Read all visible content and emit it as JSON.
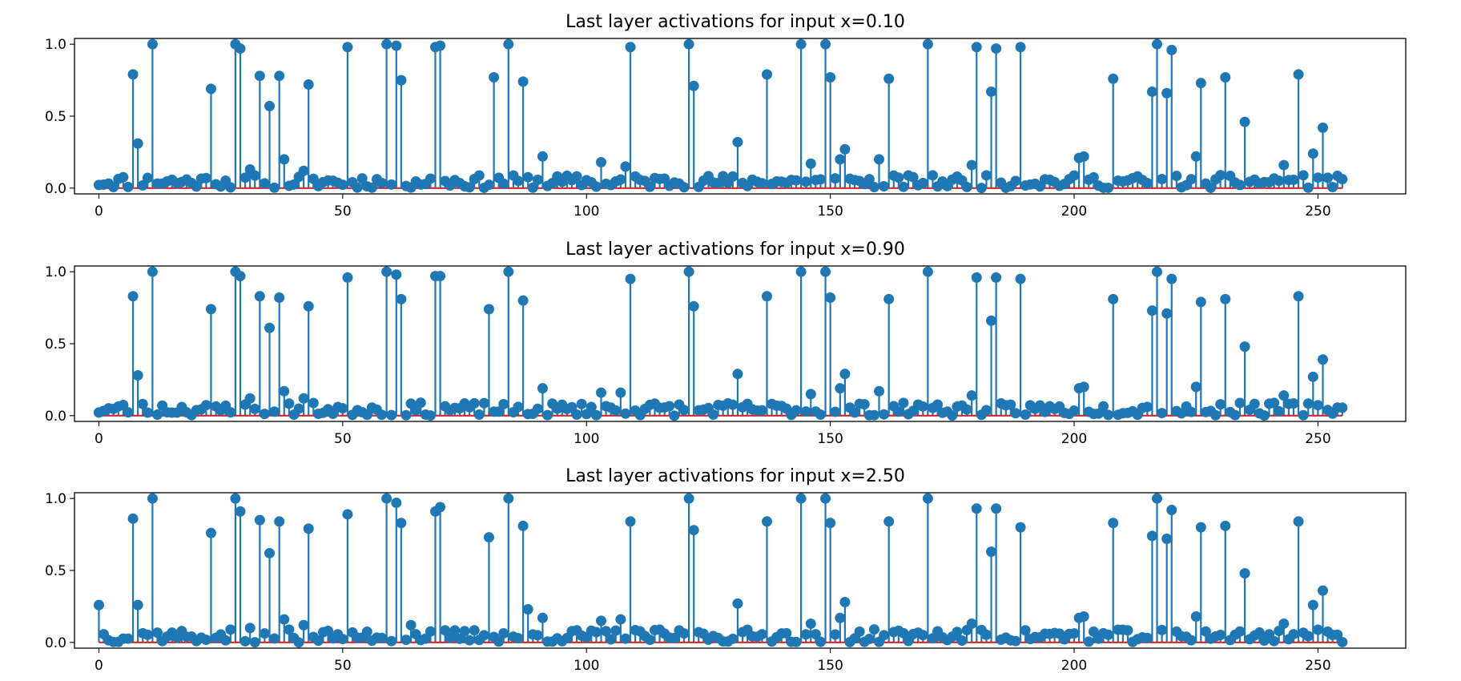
{
  "colors": {
    "stem": "#1f77b4",
    "baseline": "#d62728"
  },
  "chart_data": [
    {
      "type": "stem",
      "title": "Last layer activations for input x=0.10",
      "xlabel": "",
      "ylabel": "",
      "xlim": [
        -5,
        268
      ],
      "ylim": [
        -0.04,
        1.04
      ],
      "xticks": [
        0,
        50,
        100,
        150,
        200,
        250
      ],
      "yticks": [
        0.0,
        0.5,
        1.0
      ],
      "xtick_labels": [
        "0",
        "50",
        "100",
        "150",
        "200",
        "250"
      ],
      "ytick_labels": [
        "0.0",
        "0.5",
        "1.0"
      ],
      "grid": false,
      "legend": "none",
      "baseline_value": 0,
      "peaks": [
        [
          7,
          0.79
        ],
        [
          8,
          0.31
        ],
        [
          11,
          1.0
        ],
        [
          23,
          0.69
        ],
        [
          28,
          1.0
        ],
        [
          29,
          0.97
        ],
        [
          31,
          0.13
        ],
        [
          33,
          0.78
        ],
        [
          35,
          0.57
        ],
        [
          37,
          0.78
        ],
        [
          38,
          0.2
        ],
        [
          42,
          0.12
        ],
        [
          43,
          0.72
        ],
        [
          51,
          0.98
        ],
        [
          59,
          1.0
        ],
        [
          61,
          0.99
        ],
        [
          62,
          0.75
        ],
        [
          69,
          0.98
        ],
        [
          70,
          0.99
        ],
        [
          81,
          0.77
        ],
        [
          84,
          1.0
        ],
        [
          87,
          0.74
        ],
        [
          91,
          0.22
        ],
        [
          103,
          0.18
        ],
        [
          108,
          0.15
        ],
        [
          109,
          0.98
        ],
        [
          121,
          1.0
        ],
        [
          122,
          0.71
        ],
        [
          131,
          0.32
        ],
        [
          137,
          0.79
        ],
        [
          144,
          1.0
        ],
        [
          146,
          0.17
        ],
        [
          149,
          1.0
        ],
        [
          150,
          0.77
        ],
        [
          152,
          0.2
        ],
        [
          153,
          0.27
        ],
        [
          160,
          0.2
        ],
        [
          162,
          0.76
        ],
        [
          170,
          1.0
        ],
        [
          179,
          0.16
        ],
        [
          180,
          0.98
        ],
        [
          183,
          0.67
        ],
        [
          184,
          0.97
        ],
        [
          189,
          0.98
        ],
        [
          201,
          0.21
        ],
        [
          202,
          0.22
        ],
        [
          208,
          0.76
        ],
        [
          216,
          0.67
        ],
        [
          217,
          1.0
        ],
        [
          219,
          0.66
        ],
        [
          220,
          0.96
        ],
        [
          225,
          0.22
        ],
        [
          226,
          0.73
        ],
        [
          231,
          0.77
        ],
        [
          235,
          0.46
        ],
        [
          243,
          0.16
        ],
        [
          246,
          0.79
        ],
        [
          249,
          0.24
        ],
        [
          251,
          0.42
        ]
      ],
      "noise_seed": 11,
      "noise_max": 0.09
    },
    {
      "type": "stem",
      "title": "Last layer activations for input x=0.90",
      "xlabel": "",
      "ylabel": "",
      "xlim": [
        -5,
        268
      ],
      "ylim": [
        -0.04,
        1.04
      ],
      "xticks": [
        0,
        50,
        100,
        150,
        200,
        250
      ],
      "yticks": [
        0.0,
        0.5,
        1.0
      ],
      "xtick_labels": [
        "0",
        "50",
        "100",
        "150",
        "200",
        "250"
      ],
      "ytick_labels": [
        "0.0",
        "0.5",
        "1.0"
      ],
      "grid": false,
      "legend": "none",
      "baseline_value": 0,
      "peaks": [
        [
          7,
          0.83
        ],
        [
          8,
          0.28
        ],
        [
          11,
          1.0
        ],
        [
          23,
          0.74
        ],
        [
          28,
          1.0
        ],
        [
          29,
          0.97
        ],
        [
          31,
          0.12
        ],
        [
          33,
          0.83
        ],
        [
          35,
          0.61
        ],
        [
          37,
          0.82
        ],
        [
          38,
          0.17
        ],
        [
          42,
          0.12
        ],
        [
          43,
          0.76
        ],
        [
          51,
          0.96
        ],
        [
          59,
          1.0
        ],
        [
          61,
          0.98
        ],
        [
          62,
          0.81
        ],
        [
          69,
          0.97
        ],
        [
          70,
          0.97
        ],
        [
          80,
          0.74
        ],
        [
          84,
          1.0
        ],
        [
          87,
          0.8
        ],
        [
          91,
          0.19
        ],
        [
          103,
          0.16
        ],
        [
          107,
          0.16
        ],
        [
          109,
          0.95
        ],
        [
          121,
          1.0
        ],
        [
          122,
          0.76
        ],
        [
          131,
          0.29
        ],
        [
          137,
          0.83
        ],
        [
          144,
          1.0
        ],
        [
          146,
          0.15
        ],
        [
          149,
          1.0
        ],
        [
          150,
          0.82
        ],
        [
          152,
          0.19
        ],
        [
          153,
          0.29
        ],
        [
          160,
          0.17
        ],
        [
          162,
          0.81
        ],
        [
          170,
          1.0
        ],
        [
          179,
          0.14
        ],
        [
          180,
          0.96
        ],
        [
          183,
          0.66
        ],
        [
          184,
          0.96
        ],
        [
          189,
          0.95
        ],
        [
          201,
          0.19
        ],
        [
          202,
          0.2
        ],
        [
          208,
          0.81
        ],
        [
          216,
          0.73
        ],
        [
          217,
          1.0
        ],
        [
          219,
          0.71
        ],
        [
          220,
          0.95
        ],
        [
          225,
          0.2
        ],
        [
          226,
          0.79
        ],
        [
          231,
          0.81
        ],
        [
          235,
          0.48
        ],
        [
          243,
          0.14
        ],
        [
          246,
          0.83
        ],
        [
          249,
          0.27
        ],
        [
          251,
          0.39
        ]
      ],
      "noise_seed": 23,
      "noise_max": 0.09
    },
    {
      "type": "stem",
      "title": "Last layer activations for input x=2.50",
      "xlabel": "",
      "ylabel": "",
      "xlim": [
        -5,
        268
      ],
      "ylim": [
        -0.04,
        1.04
      ],
      "xticks": [
        0,
        50,
        100,
        150,
        200,
        250
      ],
      "yticks": [
        0.0,
        0.5,
        1.0
      ],
      "xtick_labels": [
        "0",
        "50",
        "100",
        "150",
        "200",
        "250"
      ],
      "ytick_labels": [
        "0.0",
        "0.5",
        "1.0"
      ],
      "grid": false,
      "legend": "none",
      "baseline_value": 0,
      "peaks": [
        [
          0,
          0.26
        ],
        [
          7,
          0.86
        ],
        [
          8,
          0.26
        ],
        [
          11,
          1.0
        ],
        [
          23,
          0.76
        ],
        [
          28,
          1.0
        ],
        [
          29,
          0.91
        ],
        [
          31,
          0.1
        ],
        [
          33,
          0.85
        ],
        [
          35,
          0.62
        ],
        [
          37,
          0.84
        ],
        [
          38,
          0.16
        ],
        [
          42,
          0.12
        ],
        [
          43,
          0.79
        ],
        [
          51,
          0.89
        ],
        [
          59,
          1.0
        ],
        [
          61,
          0.97
        ],
        [
          62,
          0.83
        ],
        [
          64,
          0.12
        ],
        [
          69,
          0.91
        ],
        [
          70,
          0.94
        ],
        [
          80,
          0.73
        ],
        [
          84,
          1.0
        ],
        [
          87,
          0.81
        ],
        [
          88,
          0.23
        ],
        [
          91,
          0.17
        ],
        [
          103,
          0.15
        ],
        [
          107,
          0.16
        ],
        [
          109,
          0.84
        ],
        [
          121,
          1.0
        ],
        [
          122,
          0.78
        ],
        [
          131,
          0.27
        ],
        [
          137,
          0.84
        ],
        [
          144,
          1.0
        ],
        [
          146,
          0.13
        ],
        [
          149,
          1.0
        ],
        [
          150,
          0.83
        ],
        [
          152,
          0.17
        ],
        [
          153,
          0.28
        ],
        [
          162,
          0.84
        ],
        [
          170,
          1.0
        ],
        [
          179,
          0.13
        ],
        [
          180,
          0.93
        ],
        [
          183,
          0.63
        ],
        [
          184,
          0.93
        ],
        [
          189,
          0.8
        ],
        [
          201,
          0.17
        ],
        [
          202,
          0.18
        ],
        [
          208,
          0.83
        ],
        [
          216,
          0.74
        ],
        [
          217,
          1.0
        ],
        [
          219,
          0.72
        ],
        [
          220,
          0.92
        ],
        [
          225,
          0.18
        ],
        [
          226,
          0.8
        ],
        [
          231,
          0.81
        ],
        [
          235,
          0.48
        ],
        [
          243,
          0.13
        ],
        [
          246,
          0.84
        ],
        [
          249,
          0.26
        ],
        [
          251,
          0.36
        ]
      ],
      "noise_seed": 37,
      "noise_max": 0.09
    }
  ]
}
